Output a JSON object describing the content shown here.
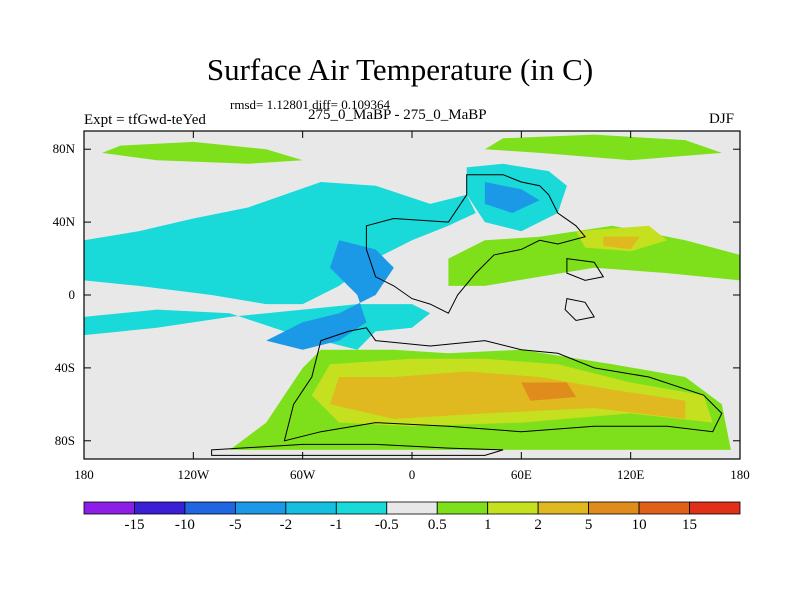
{
  "header": {
    "title": "Surface Air Temperature (in C)",
    "stats": "rmsd= 1.12801 diff= 0.109364",
    "experiment": "Expt = tfGwd-teYed",
    "runs": "275_0_MaBP - 275_0_MaBP",
    "season": "DJF"
  },
  "chart_data": {
    "type": "heatmap",
    "title": "Surface Air Temperature (in C)",
    "subtitle": "rmsd= 1.12801 diff= 0.109364",
    "xlabel": "",
    "ylabel": "",
    "xlim": [
      -180,
      180
    ],
    "ylim": [
      -90,
      90
    ],
    "x_ticks": [
      {
        "value": -180,
        "label": "180"
      },
      {
        "value": -120,
        "label": "120W"
      },
      {
        "value": -60,
        "label": "60W"
      },
      {
        "value": 0,
        "label": "0"
      },
      {
        "value": 60,
        "label": "60E"
      },
      {
        "value": 120,
        "label": "120E"
      },
      {
        "value": 180,
        "label": "180"
      }
    ],
    "y_ticks": [
      {
        "value": 80,
        "label": "80N"
      },
      {
        "value": 40,
        "label": "40N"
      },
      {
        "value": 0,
        "label": "0"
      },
      {
        "value": -40,
        "label": "40S"
      },
      {
        "value": -80,
        "label": "80S"
      }
    ],
    "colorbar": {
      "labels": [
        "-15",
        "-10",
        "-5",
        "-2",
        "-1",
        "-0.5",
        "0.5",
        "1",
        "2",
        "5",
        "10",
        "15"
      ],
      "colors": [
        "#8c1ee8",
        "#3a1fd6",
        "#1f66e0",
        "#1c99e6",
        "#16bfe0",
        "#19d9d9",
        "#e8e8e8",
        "#7ee01a",
        "#c4e01f",
        "#e0b81f",
        "#e08c1c",
        "#e0601a",
        "#e0301a"
      ]
    },
    "regions": [
      {
        "name": "background",
        "color": "#e8e8e8",
        "points": [
          [
            -180,
            90
          ],
          [
            180,
            90
          ],
          [
            180,
            -90
          ],
          [
            -180,
            -90
          ]
        ]
      },
      {
        "name": "north-pacific-cyan",
        "color": "#19d9d9",
        "points": [
          [
            -180,
            30
          ],
          [
            -150,
            35
          ],
          [
            -120,
            42
          ],
          [
            -90,
            48
          ],
          [
            -70,
            55
          ],
          [
            -50,
            62
          ],
          [
            -20,
            60
          ],
          [
            10,
            50
          ],
          [
            30,
            55
          ],
          [
            35,
            45
          ],
          [
            20,
            38
          ],
          [
            0,
            30
          ],
          [
            -20,
            20
          ],
          [
            -40,
            5
          ],
          [
            -60,
            -5
          ],
          [
            -80,
            -5
          ],
          [
            -110,
            0
          ],
          [
            -150,
            5
          ],
          [
            -180,
            8
          ]
        ]
      },
      {
        "name": "south-pacific-cyan",
        "color": "#19d9d9",
        "points": [
          [
            -180,
            -12
          ],
          [
            -140,
            -8
          ],
          [
            -100,
            -10
          ],
          [
            -70,
            -20
          ],
          [
            -50,
            -25
          ],
          [
            -30,
            -30
          ],
          [
            -20,
            -20
          ],
          [
            0,
            -18
          ],
          [
            10,
            -10
          ],
          [
            0,
            -5
          ],
          [
            -30,
            -5
          ],
          [
            -60,
            -8
          ],
          [
            -100,
            -12
          ],
          [
            -140,
            -18
          ],
          [
            -180,
            -22
          ]
        ]
      },
      {
        "name": "arctic-cyan",
        "color": "#19d9d9",
        "points": [
          [
            30,
            70
          ],
          [
            50,
            72
          ],
          [
            75,
            68
          ],
          [
            85,
            60
          ],
          [
            80,
            45
          ],
          [
            60,
            35
          ],
          [
            40,
            40
          ],
          [
            30,
            55
          ]
        ]
      },
      {
        "name": "arctic-blue",
        "color": "#1c99e6",
        "points": [
          [
            40,
            62
          ],
          [
            60,
            58
          ],
          [
            70,
            52
          ],
          [
            55,
            45
          ],
          [
            40,
            50
          ]
        ]
      },
      {
        "name": "continent-west-blue",
        "color": "#1c99e6",
        "points": [
          [
            -40,
            30
          ],
          [
            -20,
            25
          ],
          [
            -10,
            15
          ],
          [
            -20,
            0
          ],
          [
            -40,
            -10
          ],
          [
            -60,
            -15
          ],
          [
            -80,
            -25
          ],
          [
            -60,
            -30
          ],
          [
            -40,
            -25
          ],
          [
            -25,
            -15
          ],
          [
            -30,
            0
          ],
          [
            -45,
            15
          ]
        ]
      },
      {
        "name": "north-band-green",
        "color": "#7ee01a",
        "points": [
          [
            -160,
            82
          ],
          [
            -120,
            84
          ],
          [
            -80,
            80
          ],
          [
            -60,
            74
          ],
          [
            -90,
            72
          ],
          [
            -140,
            74
          ],
          [
            -170,
            78
          ]
        ]
      },
      {
        "name": "north-band-green-east",
        "color": "#7ee01a",
        "points": [
          [
            50,
            86
          ],
          [
            100,
            88
          ],
          [
            150,
            85
          ],
          [
            170,
            78
          ],
          [
            120,
            74
          ],
          [
            70,
            78
          ],
          [
            40,
            80
          ]
        ]
      },
      {
        "name": "tropical-green",
        "color": "#7ee01a",
        "points": [
          [
            20,
            20
          ],
          [
            40,
            30
          ],
          [
            70,
            32
          ],
          [
            110,
            38
          ],
          [
            150,
            30
          ],
          [
            180,
            22
          ],
          [
            180,
            8
          ],
          [
            140,
            12
          ],
          [
            100,
            15
          ],
          [
            70,
            10
          ],
          [
            40,
            5
          ],
          [
            20,
            5
          ]
        ]
      },
      {
        "name": "south-continent-green",
        "color": "#7ee01a",
        "points": [
          [
            -50,
            -30
          ],
          [
            -10,
            -30
          ],
          [
            20,
            -32
          ],
          [
            60,
            -30
          ],
          [
            110,
            -38
          ],
          [
            150,
            -45
          ],
          [
            170,
            -60
          ],
          [
            175,
            -85
          ],
          [
            -100,
            -85
          ],
          [
            -80,
            -70
          ],
          [
            -70,
            -55
          ],
          [
            -60,
            -40
          ]
        ]
      },
      {
        "name": "south-continent-yellow",
        "color": "#c4e01f",
        "points": [
          [
            -45,
            -38
          ],
          [
            0,
            -35
          ],
          [
            40,
            -35
          ],
          [
            80,
            -38
          ],
          [
            120,
            -48
          ],
          [
            160,
            -55
          ],
          [
            165,
            -70
          ],
          [
            120,
            -65
          ],
          [
            60,
            -70
          ],
          [
            0,
            -72
          ],
          [
            -40,
            -70
          ],
          [
            -55,
            -55
          ]
        ]
      },
      {
        "name": "south-continent-orange",
        "color": "#e0b81f",
        "points": [
          [
            -40,
            -45
          ],
          [
            -10,
            -45
          ],
          [
            30,
            -42
          ],
          [
            70,
            -45
          ],
          [
            110,
            -52
          ],
          [
            150,
            -58
          ],
          [
            150,
            -68
          ],
          [
            100,
            -62
          ],
          [
            40,
            -65
          ],
          [
            -10,
            -68
          ],
          [
            -45,
            -60
          ]
        ]
      },
      {
        "name": "south-continent-dark-orange",
        "color": "#e08c1c",
        "points": [
          [
            60,
            -48
          ],
          [
            85,
            -48
          ],
          [
            90,
            -56
          ],
          [
            65,
            -58
          ]
        ]
      },
      {
        "name": "northeast-yellow",
        "color": "#c4e01f",
        "points": [
          [
            90,
            35
          ],
          [
            130,
            38
          ],
          [
            140,
            30
          ],
          [
            120,
            24
          ],
          [
            95,
            26
          ]
        ]
      },
      {
        "name": "northeast-orange",
        "color": "#e0b81f",
        "points": [
          [
            105,
            32
          ],
          [
            125,
            32
          ],
          [
            120,
            25
          ],
          [
            105,
            27
          ]
        ]
      }
    ],
    "landmasses": [
      [
        [
          -50,
          -25
        ],
        [
          -35,
          -20
        ],
        [
          -25,
          -18
        ],
        [
          -20,
          -25
        ],
        [
          10,
          -28
        ],
        [
          40,
          -25
        ],
        [
          60,
          -30
        ],
        [
          80,
          -32
        ],
        [
          100,
          -40
        ],
        [
          130,
          -45
        ],
        [
          160,
          -55
        ],
        [
          170,
          -65
        ],
        [
          165,
          -75
        ],
        [
          140,
          -72
        ],
        [
          100,
          -72
        ],
        [
          60,
          -75
        ],
        [
          20,
          -72
        ],
        [
          -20,
          -70
        ],
        [
          -50,
          -75
        ],
        [
          -70,
          -80
        ],
        [
          -65,
          -60
        ],
        [
          -55,
          -45
        ]
      ],
      [
        [
          -25,
          38
        ],
        [
          -10,
          42
        ],
        [
          20,
          40
        ],
        [
          30,
          55
        ],
        [
          30,
          66
        ],
        [
          50,
          66
        ],
        [
          60,
          62
        ],
        [
          70,
          60
        ],
        [
          75,
          55
        ],
        [
          80,
          45
        ],
        [
          90,
          38
        ],
        [
          95,
          32
        ],
        [
          80,
          28
        ],
        [
          70,
          30
        ],
        [
          60,
          25
        ],
        [
          45,
          22
        ],
        [
          35,
          12
        ],
        [
          25,
          0
        ],
        [
          20,
          -10
        ],
        [
          10,
          -5
        ],
        [
          0,
          -2
        ],
        [
          -10,
          5
        ],
        [
          -20,
          10
        ],
        [
          -25,
          25
        ]
      ],
      [
        [
          -110,
          -85
        ],
        [
          -60,
          -82
        ],
        [
          -20,
          -82
        ],
        [
          20,
          -84
        ],
        [
          50,
          -85
        ],
        [
          40,
          -88
        ],
        [
          -110,
          -88
        ]
      ],
      [
        [
          85,
          20
        ],
        [
          100,
          18
        ],
        [
          105,
          10
        ],
        [
          95,
          8
        ],
        [
          85,
          12
        ]
      ],
      [
        [
          85,
          -2
        ],
        [
          95,
          -4
        ],
        [
          100,
          -12
        ],
        [
          90,
          -14
        ],
        [
          84,
          -8
        ]
      ]
    ]
  }
}
